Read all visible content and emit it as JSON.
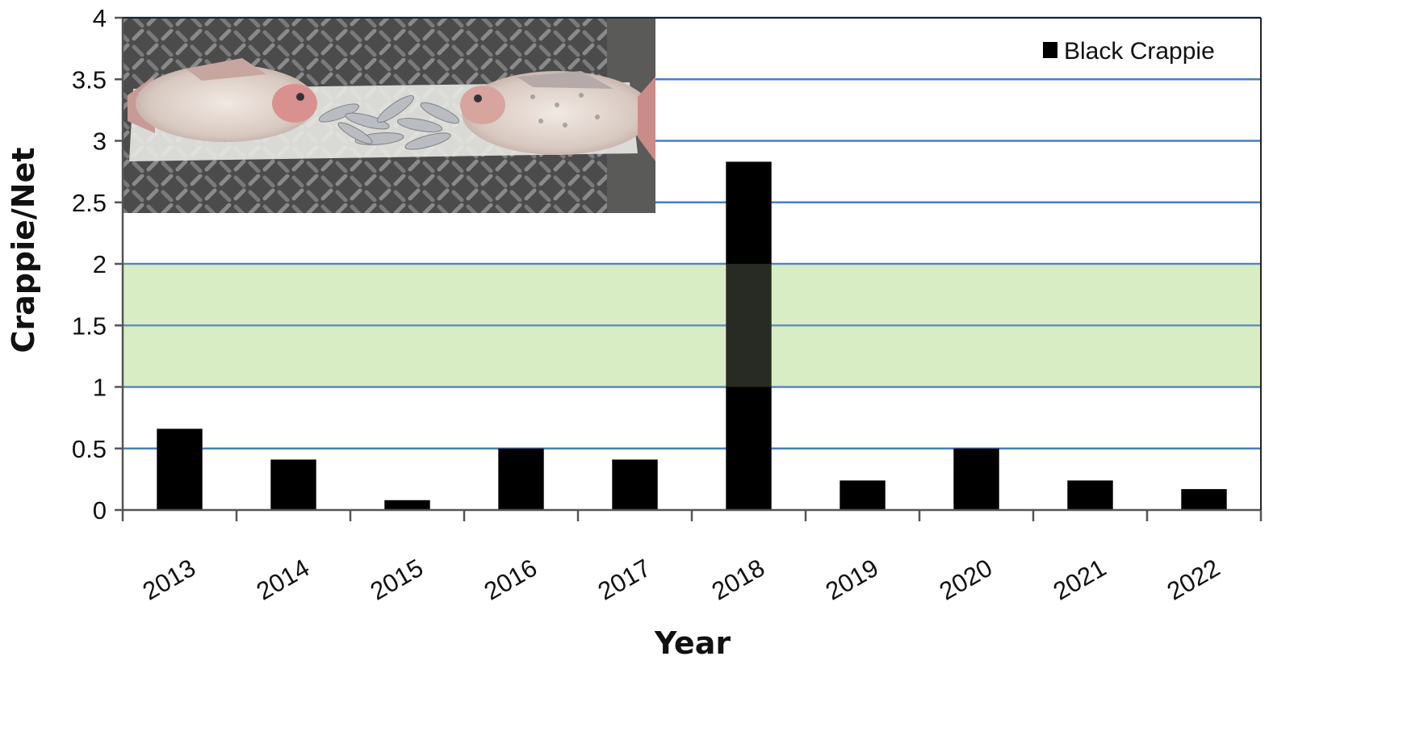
{
  "chart_data": {
    "type": "bar",
    "categories": [
      "2013",
      "2014",
      "2015",
      "2016",
      "2017",
      "2018",
      "2019",
      "2020",
      "2021",
      "2022"
    ],
    "series": [
      {
        "name": "Black Crappie",
        "values": [
          0.66,
          0.41,
          0.08,
          0.5,
          0.41,
          2.83,
          0.24,
          0.5,
          0.24,
          0.17
        ]
      }
    ],
    "title": "",
    "xlabel": "Year",
    "ylabel": "Crappie/Net",
    "ylim": [
      0,
      4
    ],
    "yticks": [
      "0",
      "0.5",
      "1",
      "1.5",
      "2",
      "2.5",
      "3",
      "3.5",
      "4"
    ],
    "target_band": [
      1,
      2
    ],
    "grid": true,
    "legend_position": "top-right",
    "inset_photo": "crappie-photo",
    "colors": {
      "bars": "#000000",
      "gridlines": "#4a7ebb",
      "target_band": "#d8edc4",
      "target_band_border": "#4a7ebb",
      "axes": "#555555"
    }
  }
}
